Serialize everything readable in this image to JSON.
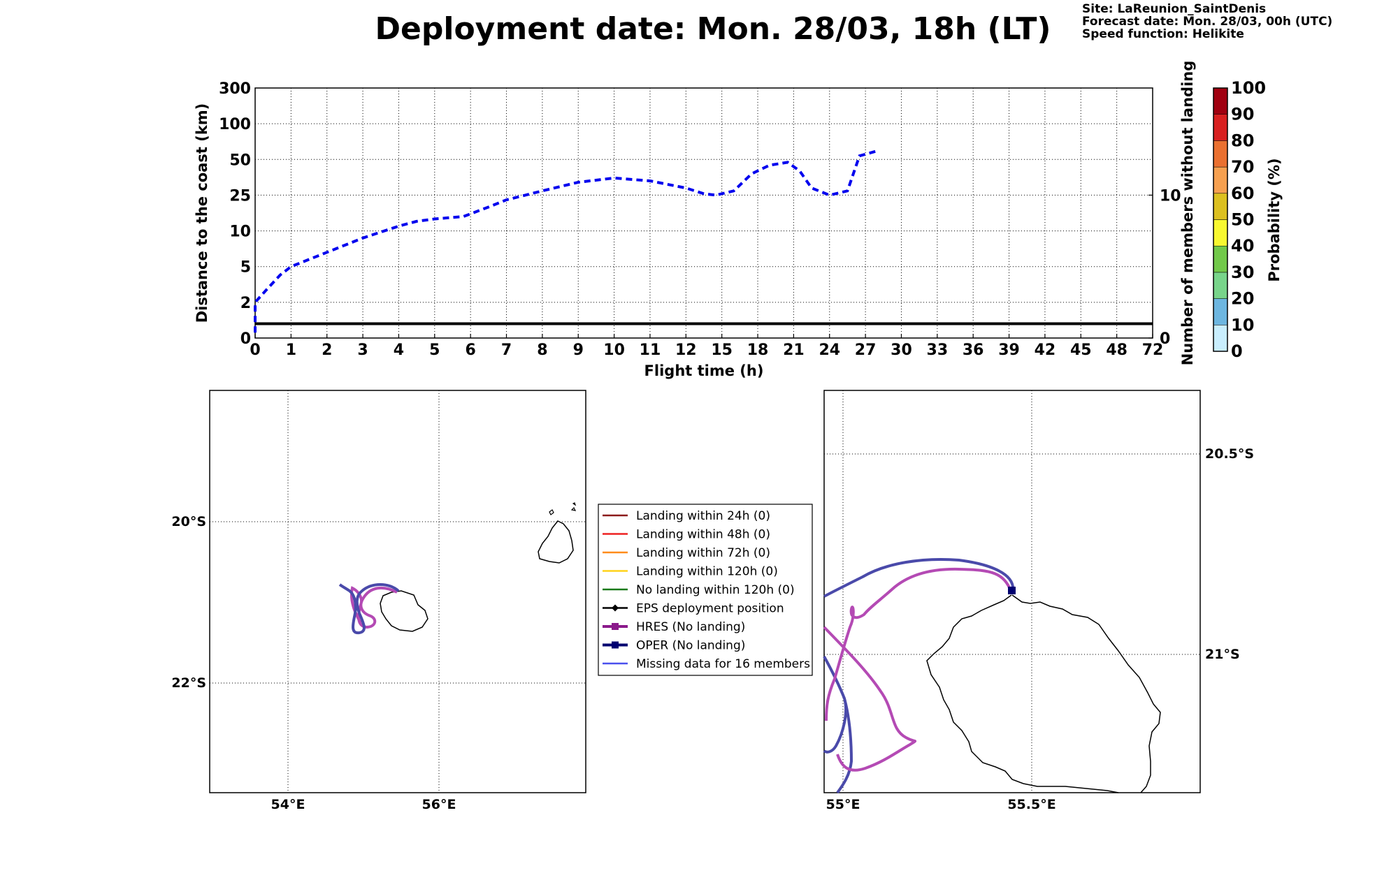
{
  "header": {
    "title": "Deployment date: Mon. 28/03, 18h (LT)",
    "site": "Site: LaReunion_SaintDenis",
    "forecast": "Forecast date: Mon. 28/03, 00h (UTC)",
    "speed": "Speed function: Helikite"
  },
  "chart_data": [
    {
      "type": "line",
      "xlabel": "Flight time (h)",
      "ylabel": "Distance to the coast (km)",
      "ylabel_right": "Number of members without landing",
      "x_ticks": [
        "0",
        "1",
        "2",
        "3",
        "4",
        "5",
        "6",
        "7",
        "8",
        "9",
        "10",
        "11",
        "12",
        "15",
        "18",
        "21",
        "24",
        "27",
        "30",
        "33",
        "36",
        "39",
        "42",
        "45",
        "48",
        "72"
      ],
      "y_ticks": [
        "0",
        "2",
        "5",
        "10",
        "25",
        "50",
        "100",
        "300"
      ],
      "y_right_ticks": [
        "0",
        "10"
      ],
      "grid": true,
      "series": [
        {
          "style": "dashed",
          "color": "#0000ee",
          "points": [
            [
              0,
              0.3
            ],
            [
              0,
              2
            ],
            [
              0.3,
              3
            ],
            [
              0.7,
              4.3
            ],
            [
              1,
              5
            ],
            [
              2,
              7
            ],
            [
              3,
              9
            ],
            [
              4,
              12
            ],
            [
              4.5,
              14
            ],
            [
              5,
              15
            ],
            [
              5.8,
              16
            ],
            [
              6.5,
              20
            ],
            [
              7,
              23
            ],
            [
              8,
              28
            ],
            [
              9,
              34
            ],
            [
              10,
              37
            ],
            [
              11,
              35
            ],
            [
              12,
              30
            ],
            [
              13.5,
              26
            ],
            [
              14.5,
              25
            ],
            [
              16,
              28
            ],
            [
              17.5,
              40
            ],
            [
              19,
              46
            ],
            [
              20.5,
              48
            ],
            [
              21.5,
              42
            ],
            [
              22.5,
              30
            ],
            [
              24,
              25
            ],
            [
              25.5,
              28
            ],
            [
              26.5,
              55
            ],
            [
              28,
              62
            ]
          ]
        },
        {
          "style": "solid",
          "color": "#000000",
          "axis": "right",
          "points": [
            [
              0,
              1
            ],
            [
              72,
              1
            ]
          ]
        }
      ]
    },
    {
      "type": "map",
      "x_ticks": [
        "54°E",
        "56°E"
      ],
      "y_ticks": [
        "20°S",
        "22°S"
      ]
    },
    {
      "type": "map",
      "x_ticks": [
        "55°E",
        "55.5°E"
      ],
      "y_ticks": [
        "20.5°S",
        "21°S"
      ]
    }
  ],
  "colorbar": {
    "label": "Probability (%)",
    "ticks": [
      "0",
      "10",
      "20",
      "30",
      "40",
      "50",
      "60",
      "70",
      "80",
      "90",
      "100"
    ],
    "colors": [
      "#c9eefe",
      "#6db6e0",
      "#78d48a",
      "#72c94a",
      "#f8f830",
      "#dcc020",
      "#f6a050",
      "#ea7030",
      "#d82020",
      "#a00010"
    ]
  },
  "legend": [
    {
      "label": "Landing within 24h (0)",
      "color": "#8b1a1a",
      "marker": "none"
    },
    {
      "label": "Landing within 48h (0)",
      "color": "#ee2020",
      "marker": "none"
    },
    {
      "label": "Landing within 72h (0)",
      "color": "#ff8c1a",
      "marker": "none"
    },
    {
      "label": "Landing within 120h (0)",
      "color": "#ffd21a",
      "marker": "none"
    },
    {
      "label": "No landing within 120h (0)",
      "color": "#1a7a1a",
      "marker": "none"
    },
    {
      "label": "EPS deployment position",
      "color": "#000000",
      "marker": "diamond"
    },
    {
      "label": "HRES (No landing)",
      "color": "#8b1a8b",
      "marker": "square"
    },
    {
      "label": "OPER (No landing)",
      "color": "#000070",
      "marker": "square"
    },
    {
      "label": "Missing data for 16 members",
      "color": "#4a50ee",
      "marker": "none"
    }
  ],
  "colors": {
    "hres_track": "#b44ab4",
    "oper_track": "#4a4aaa",
    "grid": "#000000"
  }
}
